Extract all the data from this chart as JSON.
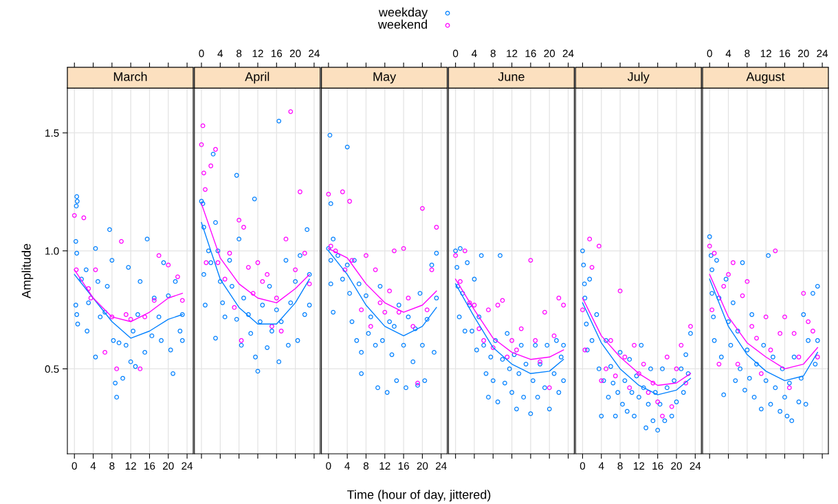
{
  "chart_data": [
    {
      "type": "scatter",
      "title": "March",
      "ylabel": "Amplitude",
      "legend": "top",
      "grid": true,
      "xlim": [
        -1.5,
        25.3
      ],
      "xticks": [
        0,
        4,
        8,
        12,
        16,
        20,
        24
      ],
      "ylim": [
        0.14,
        1.69
      ],
      "yticks": [
        {
          "value": 0.5,
          "label": "0.5"
        },
        {
          "value": 1.0,
          "label": "1.0"
        },
        {
          "value": 1.5,
          "label": "1.5"
        }
      ],
      "series": [
        {
          "name": "weekday",
          "marker": "circle",
          "color": "#0080ff",
          "x": [
            0.5,
            0.6,
            0.4,
            0.3,
            0.5,
            0.3,
            0.5,
            0.7,
            1.5,
            2.5,
            2.7,
            3.0,
            4.5,
            4.5,
            5,
            5.5,
            6.5,
            7,
            7.5,
            8,
            8.3,
            8.7,
            9,
            9.5,
            10.3,
            11,
            11.5,
            12,
            12.5,
            13,
            13.5,
            14,
            15.5,
            15,
            16.5,
            17,
            18,
            18.5,
            19,
            20,
            20.5,
            21,
            21.5,
            22.5,
            23,
            23
          ],
          "values": [
            1.23,
            1.21,
            1.19,
            1.04,
            0.99,
            0.77,
            0.73,
            0.69,
            0.88,
            0.92,
            0.66,
            0.78,
            0.55,
            1.01,
            0.87,
            0.72,
            0.74,
            0.85,
            1.09,
            0.96,
            0.62,
            0.44,
            0.38,
            0.61,
            0.46,
            0.6,
            0.93,
            0.53,
            0.66,
            0.51,
            0.73,
            0.87,
            1.05,
            0.57,
            0.64,
            0.8,
            0.72,
            0.62,
            0.95,
            0.81,
            0.58,
            0.48,
            0.87,
            0.66,
            0.73,
            0.62
          ]
        },
        {
          "name": "weekend",
          "marker": "circle",
          "color": "#ff00ff",
          "x": [
            0,
            0.4,
            2,
            3,
            3.5,
            4.5,
            6.5,
            8,
            9,
            10,
            11,
            12,
            14,
            15,
            17,
            18,
            20,
            22,
            23
          ],
          "values": [
            1.15,
            0.92,
            1.14,
            0.84,
            0.8,
            0.92,
            0.57,
            0.72,
            0.5,
            1.04,
            0.73,
            0.71,
            0.5,
            0.72,
            0.79,
            0.98,
            0.94,
            0.89,
            0.79
          ]
        },
        {
          "type": "line",
          "color": "#0080ff",
          "x": [
            0,
            4,
            8,
            12,
            16,
            20,
            23
          ],
          "values": [
            0.9,
            0.8,
            0.7,
            0.63,
            0.66,
            0.71,
            0.73
          ]
        },
        {
          "type": "line",
          "color": "#ff00ff",
          "x": [
            0,
            4,
            8,
            12,
            16,
            20,
            23
          ],
          "values": [
            0.92,
            0.8,
            0.72,
            0.7,
            0.74,
            0.8,
            0.82
          ]
        }
      ]
    },
    {
      "type": "scatter",
      "title": "April",
      "grid": true,
      "tick_labels": "x",
      "xlim": [
        -1.5,
        25.3
      ],
      "xticks": [
        0,
        4,
        8,
        12,
        16,
        20,
        24
      ],
      "ylim": [
        0.14,
        1.69
      ],
      "yticks": [
        0.5,
        1.0,
        1.5
      ],
      "series": [
        {
          "marker": "circle",
          "color": "#0080ff",
          "x": [
            0,
            0.3,
            0.5,
            0.5,
            0.8,
            1.5,
            2,
            2.5,
            3,
            3,
            3.5,
            4,
            4.5,
            5,
            6,
            6.5,
            7.5,
            7.5,
            8,
            8.5,
            9,
            10,
            10.5,
            11.3,
            11.5,
            12,
            12.5,
            13,
            14,
            14.5,
            15,
            16,
            16.5,
            16.5,
            17,
            18,
            18.5,
            19,
            20,
            20.5,
            21,
            22,
            22.5,
            23,
            23
          ],
          "values": [
            1.21,
            1.2,
            1.1,
            0.9,
            0.77,
            1.0,
            0.95,
            1.41,
            1.12,
            0.63,
            1.0,
            0.87,
            0.78,
            0.72,
            0.96,
            0.85,
            1.32,
            0.71,
            1.05,
            0.6,
            0.8,
            0.73,
            0.65,
            1.22,
            0.55,
            0.49,
            0.7,
            0.77,
            0.59,
            0.85,
            0.66,
            0.75,
            1.55,
            0.53,
            0.7,
            0.96,
            0.6,
            0.78,
            0.87,
            0.62,
            0.98,
            0.73,
            1.09,
            0.9,
            0.77
          ]
        },
        {
          "marker": "circle",
          "color": "#ff00ff",
          "x": [
            0,
            0.3,
            0.5,
            0.8,
            1,
            2,
            3,
            3.5,
            5,
            6,
            7,
            8,
            8.5,
            9,
            10,
            11,
            12,
            13,
            14,
            15,
            16,
            17,
            18,
            19,
            20,
            21,
            22,
            23
          ],
          "values": [
            1.45,
            1.53,
            1.33,
            1.26,
            0.95,
            1.36,
            1.43,
            0.95,
            0.88,
            0.99,
            0.76,
            1.13,
            0.62,
            1.1,
            0.93,
            0.82,
            0.95,
            0.87,
            0.9,
            0.68,
            0.8,
            0.66,
            1.05,
            1.59,
            0.92,
            1.25,
            0.99,
            0.86
          ]
        },
        {
          "type": "line",
          "color": "#0080ff",
          "x": [
            0,
            4,
            8,
            12,
            16,
            20,
            23
          ],
          "values": [
            1.12,
            0.88,
            0.76,
            0.69,
            0.69,
            0.78,
            0.88
          ]
        },
        {
          "type": "line",
          "color": "#ff00ff",
          "x": [
            0,
            4,
            8,
            12,
            16,
            20,
            23
          ],
          "values": [
            1.2,
            0.97,
            0.86,
            0.8,
            0.78,
            0.84,
            0.9
          ]
        }
      ]
    },
    {
      "type": "scatter",
      "title": "May",
      "xlabel": "Time (hour of day, jittered)",
      "grid": true,
      "tick_labels": "x",
      "xlim": [
        -1.5,
        25.3
      ],
      "xticks": [
        0,
        4,
        8,
        12,
        16,
        20,
        24
      ],
      "ylim": [
        0.14,
        1.69
      ],
      "yticks": [
        0.5,
        1.0,
        1.5
      ],
      "series": [
        {
          "marker": "circle",
          "color": "#0080ff",
          "x": [
            0,
            0.3,
            0.5,
            0.5,
            0.5,
            1,
            1,
            2,
            3,
            4,
            4,
            4.5,
            5,
            5.5,
            6,
            6.5,
            7,
            7,
            8,
            8.5,
            9,
            10,
            10.5,
            11,
            11.5,
            12.5,
            13,
            13.5,
            14,
            14.5,
            15,
            16,
            16.5,
            17,
            18,
            18.5,
            19,
            19.5,
            20,
            20.5,
            21,
            22,
            22.5,
            23,
            23
          ],
          "values": [
            1.01,
            1.49,
            1.2,
            0.96,
            0.86,
            1.05,
            0.74,
            0.98,
            0.88,
            1.44,
            0.94,
            0.82,
            0.7,
            0.96,
            0.62,
            0.86,
            0.57,
            0.48,
            0.81,
            0.65,
            0.72,
            0.6,
            0.42,
            0.85,
            0.62,
            0.4,
            0.7,
            0.56,
            0.68,
            0.45,
            0.77,
            0.6,
            0.42,
            0.72,
            0.53,
            0.67,
            0.43,
            0.82,
            0.6,
            0.45,
            0.71,
            0.94,
            0.57,
            0.8,
            0.99
          ]
        },
        {
          "marker": "circle",
          "color": "#ff00ff",
          "x": [
            0,
            0.5,
            1.5,
            3,
            3.5,
            4.5,
            5,
            7,
            8,
            9,
            10,
            11,
            12,
            13,
            14,
            15,
            16,
            17,
            18,
            19,
            20,
            21,
            22,
            23
          ],
          "values": [
            1.24,
            1.02,
            1.0,
            1.25,
            0.92,
            1.21,
            0.96,
            0.75,
            0.98,
            0.68,
            0.92,
            0.78,
            0.74,
            0.83,
            1.0,
            0.74,
            1.01,
            0.8,
            0.68,
            0.44,
            1.18,
            0.75,
            0.92,
            1.1
          ]
        },
        {
          "type": "line",
          "color": "#0080ff",
          "x": [
            0,
            4,
            8,
            12,
            16,
            20,
            23
          ],
          "values": [
            1.0,
            0.9,
            0.77,
            0.68,
            0.64,
            0.68,
            0.76
          ]
        },
        {
          "type": "line",
          "color": "#ff00ff",
          "x": [
            0,
            4,
            8,
            12,
            16,
            20,
            23
          ],
          "values": [
            1.01,
            0.97,
            0.86,
            0.78,
            0.74,
            0.77,
            0.83
          ]
        }
      ]
    },
    {
      "type": "scatter",
      "title": "June",
      "grid": true,
      "tick_labels": "x",
      "xlim": [
        -1.5,
        25.3
      ],
      "xticks": [
        0,
        4,
        8,
        12,
        16,
        20,
        24
      ],
      "ylim": [
        0.14,
        1.69
      ],
      "yticks": [
        0.5,
        1.0,
        1.5
      ],
      "series": [
        {
          "marker": "circle",
          "color": "#0080ff",
          "x": [
            0,
            0.3,
            0.5,
            0.8,
            1,
            1.5,
            2,
            2.5,
            3,
            3.5,
            4,
            4.5,
            5,
            5.5,
            6,
            6.5,
            7,
            7.5,
            8,
            8.5,
            9,
            9.5,
            10,
            10.5,
            11,
            11.5,
            12,
            12.5,
            13,
            13.5,
            14,
            14.5,
            15,
            16,
            16.5,
            17,
            17.5,
            18,
            19,
            19.5,
            20,
            21,
            21.5,
            22,
            22.5,
            23,
            23
          ],
          "values": [
            1.0,
            0.93,
            0.85,
            0.72,
            1.01,
            0.82,
            0.66,
            0.95,
            0.77,
            0.66,
            0.88,
            0.58,
            0.72,
            0.98,
            0.6,
            0.48,
            0.38,
            0.55,
            0.45,
            0.62,
            0.36,
            0.98,
            0.54,
            0.44,
            0.65,
            0.5,
            0.4,
            0.56,
            0.33,
            0.48,
            0.6,
            0.38,
            0.52,
            0.31,
            0.45,
            0.6,
            0.38,
            0.52,
            0.42,
            0.6,
            0.33,
            0.48,
            0.62,
            0.4,
            0.55,
            0.45,
            0.6
          ]
        },
        {
          "marker": "circle",
          "color": "#ff00ff",
          "x": [
            0,
            1,
            2,
            3,
            4,
            5,
            6,
            7,
            8,
            9,
            10,
            11,
            12,
            13,
            14,
            16,
            17,
            18,
            19,
            20,
            21,
            22,
            23
          ],
          "values": [
            0.98,
            0.87,
            1.0,
            0.78,
            0.77,
            0.67,
            0.62,
            0.75,
            0.59,
            0.77,
            0.79,
            0.55,
            0.62,
            0.58,
            0.67,
            0.96,
            0.62,
            0.53,
            0.74,
            0.42,
            0.64,
            0.8,
            0.77
          ]
        },
        {
          "type": "line",
          "color": "#0080ff",
          "x": [
            0,
            4,
            8,
            12,
            16,
            20,
            23
          ],
          "values": [
            0.86,
            0.72,
            0.59,
            0.52,
            0.48,
            0.49,
            0.54
          ]
        },
        {
          "type": "line",
          "color": "#ff00ff",
          "x": [
            0,
            4,
            8,
            12,
            16,
            20,
            23
          ],
          "values": [
            0.88,
            0.75,
            0.63,
            0.57,
            0.54,
            0.55,
            0.58
          ]
        }
      ]
    },
    {
      "type": "scatter",
      "title": "July",
      "grid": true,
      "tick_labels": "x",
      "xlim": [
        -1.5,
        25.3
      ],
      "xticks": [
        0,
        4,
        8,
        12,
        16,
        20,
        24
      ],
      "ylim": [
        0.14,
        1.69
      ],
      "yticks": [
        0.5,
        1.0,
        1.5
      ],
      "series": [
        {
          "marker": "circle",
          "color": "#0080ff",
          "x": [
            0,
            0.2,
            0.4,
            0.5,
            0.8,
            1,
            1.5,
            2,
            3,
            3.5,
            4,
            4.5,
            5,
            5.5,
            6,
            6.5,
            7,
            7.5,
            8,
            8.5,
            9,
            9.5,
            10,
            10.5,
            11,
            11.5,
            12,
            12.5,
            13,
            13.5,
            14,
            14.5,
            15,
            15.5,
            16,
            16.5,
            17,
            17.5,
            18,
            19,
            19.5,
            20,
            21,
            21.5,
            22,
            22.5,
            23
          ],
          "values": [
            1.0,
            0.94,
            0.86,
            0.8,
            0.69,
            0.58,
            0.88,
            0.62,
            0.73,
            0.5,
            0.3,
            0.45,
            0.62,
            0.38,
            0.51,
            0.44,
            0.3,
            0.4,
            0.57,
            0.35,
            0.45,
            0.32,
            0.54,
            0.4,
            0.3,
            0.47,
            0.38,
            0.6,
            0.42,
            0.25,
            0.35,
            0.5,
            0.28,
            0.4,
            0.24,
            0.35,
            0.5,
            0.28,
            0.42,
            0.3,
            0.45,
            0.36,
            0.5,
            0.4,
            0.56,
            0.48,
            0.65
          ]
        },
        {
          "marker": "circle",
          "color": "#ff00ff",
          "x": [
            0,
            0.5,
            1.5,
            2,
            3.5,
            4,
            5,
            6,
            7,
            8,
            9,
            10,
            11,
            12,
            13,
            14,
            15,
            16,
            17,
            18,
            19,
            20,
            21,
            22,
            23
          ],
          "values": [
            0.75,
            0.58,
            1.05,
            0.93,
            1.02,
            0.45,
            0.5,
            0.62,
            0.47,
            0.83,
            0.55,
            0.42,
            0.6,
            0.48,
            0.52,
            0.4,
            0.44,
            0.36,
            0.3,
            0.55,
            0.34,
            0.5,
            0.6,
            0.44,
            0.68
          ]
        },
        {
          "type": "line",
          "color": "#0080ff",
          "x": [
            0,
            4,
            8,
            12,
            16,
            20,
            23
          ],
          "values": [
            0.78,
            0.61,
            0.5,
            0.43,
            0.39,
            0.41,
            0.46
          ]
        },
        {
          "type": "line",
          "color": "#ff00ff",
          "x": [
            0,
            4,
            8,
            12,
            16,
            20,
            23
          ],
          "values": [
            0.8,
            0.64,
            0.55,
            0.48,
            0.43,
            0.44,
            0.48
          ]
        }
      ]
    },
    {
      "type": "scatter",
      "title": "August",
      "grid": true,
      "tick_labels": "x",
      "xlim": [
        -1.5,
        25.3
      ],
      "xticks": [
        0,
        4,
        8,
        12,
        16,
        20,
        24
      ],
      "ylim": [
        0.14,
        1.69
      ],
      "yticks": [
        0.5,
        1.0,
        1.5
      ],
      "series": [
        {
          "marker": "circle",
          "color": "#0080ff",
          "x": [
            0,
            0.3,
            0.5,
            0.5,
            0.8,
            1,
            1.5,
            2,
            2.5,
            3,
            3.5,
            4,
            4.5,
            5,
            5.5,
            6,
            6.5,
            7,
            7.5,
            8,
            8.5,
            9,
            9.5,
            10,
            11,
            11.5,
            12,
            12.5,
            13,
            13.5,
            14,
            15,
            15.5,
            16,
            16.5,
            17,
            17.5,
            18,
            19,
            19.5,
            20,
            20.5,
            21,
            22,
            22.5,
            23,
            23
          ],
          "values": [
            1.06,
            0.98,
            0.92,
            0.82,
            0.72,
            0.62,
            0.96,
            0.8,
            0.55,
            0.39,
            0.88,
            0.7,
            0.6,
            0.78,
            0.45,
            0.66,
            0.5,
            0.95,
            0.41,
            0.58,
            0.46,
            0.73,
            0.38,
            0.52,
            0.33,
            0.6,
            0.45,
            0.98,
            0.35,
            0.55,
            0.42,
            0.32,
            0.5,
            0.38,
            0.3,
            0.44,
            0.28,
            0.55,
            0.36,
            0.46,
            0.73,
            0.35,
            0.62,
            0.82,
            0.52,
            0.85,
            0.62
          ]
        },
        {
          "marker": "circle",
          "color": "#ff00ff",
          "x": [
            0,
            0.5,
            1,
            2,
            3,
            4,
            5,
            6,
            7,
            8,
            9,
            10,
            11,
            12,
            13,
            14,
            15,
            16,
            17,
            18,
            19,
            20,
            21,
            22,
            23
          ],
          "values": [
            1.02,
            0.75,
            0.99,
            0.52,
            0.85,
            0.9,
            0.95,
            0.52,
            0.81,
            0.87,
            0.68,
            0.63,
            0.48,
            0.72,
            0.58,
            1.0,
            0.65,
            0.72,
            0.42,
            0.65,
            0.55,
            0.82,
            0.7,
            0.66,
            0.55
          ]
        },
        {
          "type": "line",
          "color": "#0080ff",
          "x": [
            0,
            4,
            8,
            12,
            16,
            20,
            23
          ],
          "values": [
            0.88,
            0.68,
            0.56,
            0.49,
            0.45,
            0.47,
            0.57
          ]
        },
        {
          "type": "line",
          "color": "#ff00ff",
          "x": [
            0,
            4,
            8,
            12,
            16,
            20,
            23
          ],
          "values": [
            0.9,
            0.72,
            0.61,
            0.55,
            0.5,
            0.52,
            0.59
          ]
        }
      ]
    }
  ]
}
